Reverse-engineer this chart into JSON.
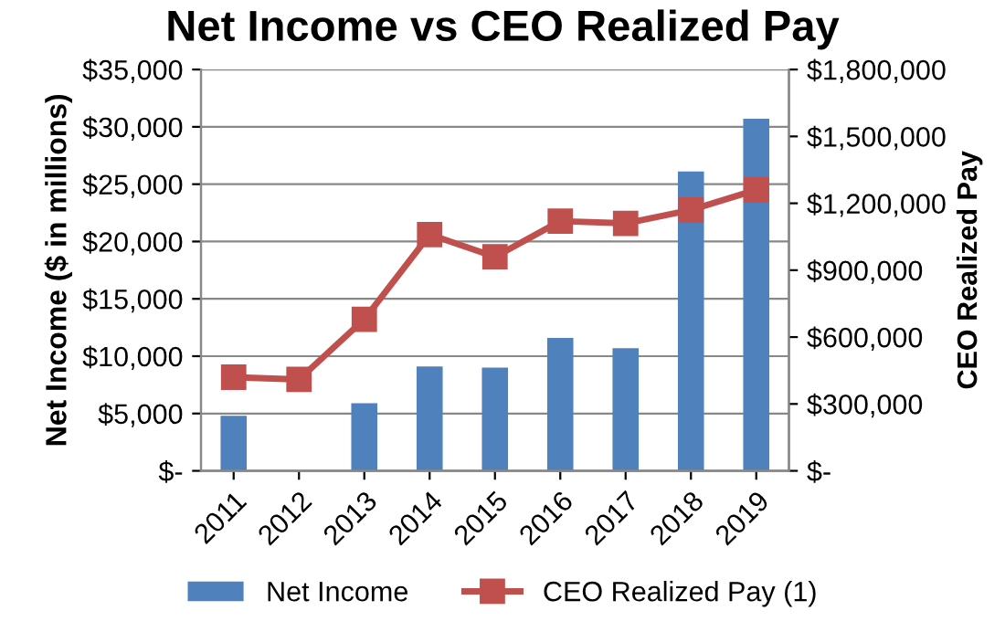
{
  "chart_data": {
    "type": "bar",
    "title": "Net Income vs CEO Realized Pay",
    "ylabel": "Net Income ($ in millions)",
    "y2label": "CEO Realized Pay",
    "categories": [
      "2011",
      "2012",
      "2013",
      "2014",
      "2015",
      "2016",
      "2017",
      "2018",
      "2019"
    ],
    "series": [
      {
        "name": "Net Income",
        "color": "#4f81bd",
        "values": [
          4800,
          0,
          5900,
          9100,
          9000,
          11600,
          10700,
          26100,
          30700
        ]
      },
      {
        "name": "CEO Realized Pay (1)",
        "type": "line",
        "axis": "y2",
        "color": "#c0504d",
        "marker": "square",
        "line_style": "solid",
        "values": [
          420000,
          410000,
          680000,
          1060000,
          960000,
          1120000,
          1110000,
          1170000,
          1260000
        ]
      }
    ],
    "ylim": [
      0,
      35000
    ],
    "yticks": [
      {
        "value": 0,
        "label": "$-"
      },
      {
        "value": 5000,
        "label": "$5,000"
      },
      {
        "value": 10000,
        "label": "$10,000"
      },
      {
        "value": 15000,
        "label": "$15,000"
      },
      {
        "value": 20000,
        "label": "$20,000"
      },
      {
        "value": 25000,
        "label": "$25,000"
      },
      {
        "value": 30000,
        "label": "$30,000"
      },
      {
        "value": 35000,
        "label": "$35,000"
      }
    ],
    "y2lim": [
      0,
      1800000
    ],
    "y2ticks": [
      {
        "value": 0,
        "label": "$-"
      },
      {
        "value": 300000,
        "label": "$300,000"
      },
      {
        "value": 600000,
        "label": "$600,000"
      },
      {
        "value": 900000,
        "label": "$900,000"
      },
      {
        "value": 1200000,
        "label": "$1,200,000"
      },
      {
        "value": 1500000,
        "label": "$1,500,000"
      },
      {
        "value": 1800000,
        "label": "$1,800,000"
      }
    ],
    "grid": "y",
    "legend": "bottom"
  }
}
